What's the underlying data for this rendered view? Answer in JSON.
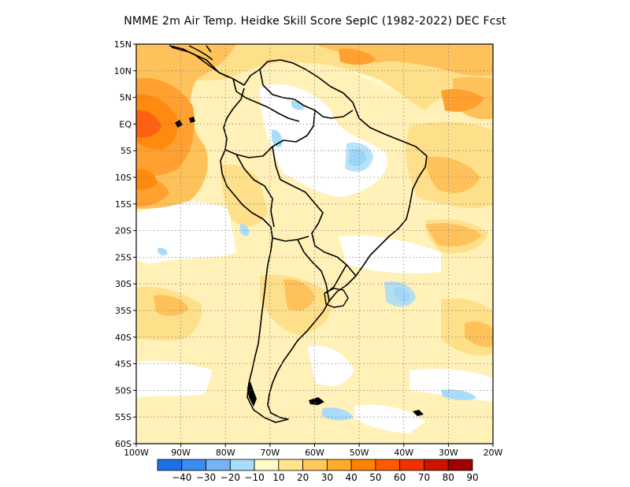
{
  "title": "NMME  2m Air Temp. Heidke Skill Score SepIC (1982-2022) DEC Fcst",
  "map": {
    "lat_labels": [
      "15N",
      "10N",
      "5N",
      "EQ",
      "5S",
      "10S",
      "15S",
      "20S",
      "25S",
      "30S",
      "35S",
      "40S",
      "45S",
      "50S",
      "55S",
      "60S"
    ],
    "lon_labels": [
      "100W",
      "90W",
      "80W",
      "70W",
      "60W",
      "50W",
      "40W",
      "30W",
      "20W"
    ],
    "lon_range": [
      -100,
      -20
    ],
    "lat_range": [
      -60,
      15
    ],
    "grid": "dotted"
  },
  "colorbar": {
    "labels": [
      "-40",
      "-30",
      "-20",
      "-10",
      "10",
      "20",
      "30",
      "40",
      "50",
      "60",
      "70",
      "80",
      "90"
    ],
    "colors": [
      "#1e6fe6",
      "#3a8cf0",
      "#78b4f5",
      "#a8dcf8",
      "#fffac8",
      "#ffe68c",
      "#ffc85a",
      "#ffaa28",
      "#ff8200",
      "#ff5a00",
      "#f03200",
      "#c81400",
      "#a00000"
    ]
  },
  "chart_data": {
    "type": "heatmap",
    "title": "NMME  2m Air Temp. Heidke Skill Score SepIC (1982-2022) DEC Fcst",
    "x_range": [
      -100,
      -20
    ],
    "y_range": [
      -60,
      15
    ],
    "levels": [
      -40,
      -30,
      -20,
      -10,
      10,
      20,
      30,
      40,
      50,
      60,
      70,
      80,
      90
    ]
  }
}
